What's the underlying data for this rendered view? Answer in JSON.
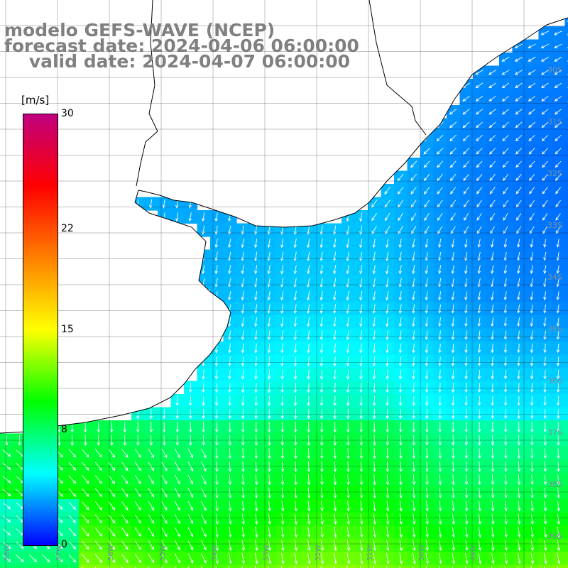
{
  "header": {
    "line1": "modelo GEFS-WAVE (NCEP)",
    "line2": "forecast date: 2024-04-06 06:00:00",
    "line3": "    valid date: 2024-04-07 06:00:00"
  },
  "colorbar": {
    "unit": "[m/s]",
    "ticks": [
      "30",
      "22",
      "15",
      "8",
      "0"
    ],
    "tick_values": [
      30,
      22,
      15,
      8,
      0
    ],
    "stops": [
      "#0000ff",
      "#00ffff",
      "#00ff00",
      "#ffff00",
      "#ff8000",
      "#ff0000",
      "#c0007f"
    ]
  },
  "map": {
    "gridlines": true,
    "lat_labels": [
      "30S",
      "31S",
      "32S",
      "33S",
      "34S",
      "35S",
      "36S",
      "37S",
      "38S",
      "39S"
    ],
    "lon_labels": [
      "58W",
      "57W",
      "56W",
      "55W",
      "54W",
      "53W",
      "52W",
      "51W",
      "50W",
      "49W"
    ],
    "field": "wind speed with direction arrows",
    "colors": {
      "land": "#ffffff",
      "coast": "#000000",
      "grid": "#000000",
      "arrow": "#ffffff"
    }
  }
}
